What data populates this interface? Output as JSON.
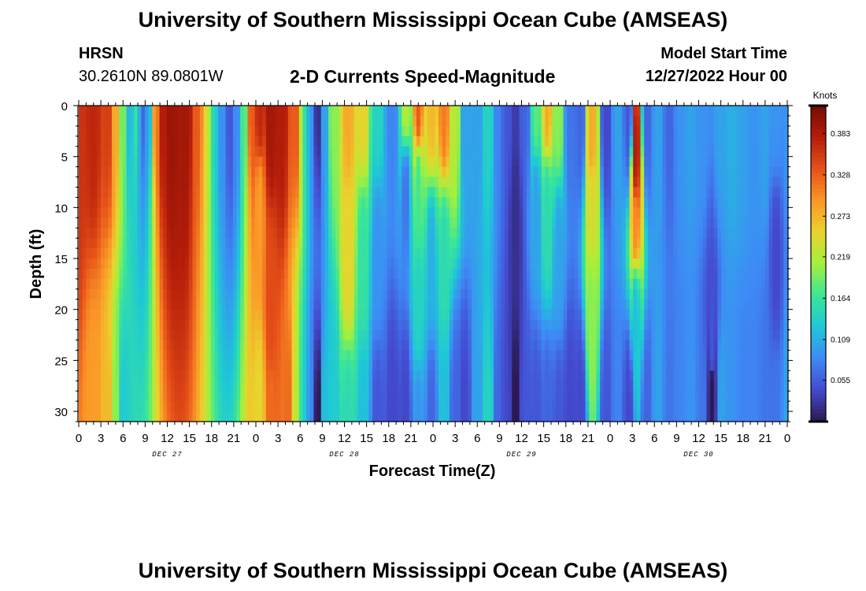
{
  "header": {
    "title": "University of Southern Mississippi Ocean Cube (AMSEAS)",
    "station": "HRSN",
    "coordinates": "30.2610N  89.0801W",
    "plot_title": "2-D Currents Speed-Magnitude",
    "model_start_label": "Model Start Time",
    "model_start_value": "12/27/2022 Hour 00"
  },
  "footer": {
    "title": "University of Southern Mississippi Ocean Cube (AMSEAS)"
  },
  "chart_data": {
    "type": "heatmap",
    "title": "2-D Currents Speed-Magnitude",
    "xlabel": "Forecast Time(Z)",
    "ylabel": "Depth (ft)",
    "x_range_hours": [
      0,
      96
    ],
    "ylim": [
      0,
      31
    ],
    "y_ticks": [
      "0",
      "5",
      "10",
      "15",
      "20",
      "25",
      "30"
    ],
    "x_tick_labels": [
      "0",
      "3",
      "6",
      "9",
      "12",
      "15",
      "18",
      "21",
      "0",
      "3",
      "6",
      "9",
      "12",
      "15",
      "18",
      "21",
      "0",
      "3",
      "6",
      "9",
      "12",
      "15",
      "18",
      "21",
      "0",
      "3",
      "6",
      "9",
      "12",
      "15",
      "18",
      "21",
      "0"
    ],
    "day_labels": [
      {
        "label": "DEC 27",
        "hour": 12
      },
      {
        "label": "DEC 28",
        "hour": 36
      },
      {
        "label": "DEC 29",
        "hour": 60
      },
      {
        "label": "DEC 30",
        "hour": 84
      }
    ],
    "colorbar": {
      "title": "Knots",
      "ticks": [
        "0.383",
        "0.328",
        "0.273",
        "0.219",
        "0.164",
        "0.109",
        "0.055"
      ],
      "range": [
        0.0,
        0.42
      ],
      "tick_values": [
        0.383,
        0.328,
        0.273,
        0.219,
        0.164,
        0.109,
        0.055
      ]
    },
    "features": [
      {
        "h": 0,
        "d": 0,
        "v": 0.36
      },
      {
        "h": 2,
        "d": 0,
        "v": 0.37
      },
      {
        "h": 2,
        "d": 31,
        "v": 0.29
      },
      {
        "h": 4,
        "d": 0,
        "v": 0.35
      },
      {
        "h": 4,
        "d": 31,
        "v": 0.27
      },
      {
        "h": 5,
        "d": 0,
        "v": 0.28
      },
      {
        "h": 5,
        "d": 31,
        "v": 0.2
      },
      {
        "h": 6,
        "d": 0,
        "v": 0.19
      },
      {
        "h": 6,
        "d": 31,
        "v": 0.13
      },
      {
        "h": 7,
        "d": 0,
        "v": 0.11
      },
      {
        "h": 7.5,
        "d": 0,
        "v": 0.16
      },
      {
        "h": 8.3,
        "d": 0,
        "v": 0.11
      },
      {
        "h": 8.8,
        "d": 0,
        "v": 0.06
      },
      {
        "h": 9.6,
        "d": 0,
        "v": 0.12
      },
      {
        "h": 10.3,
        "d": 0,
        "v": 0.29
      },
      {
        "h": 11.2,
        "d": 0,
        "v": 0.38
      },
      {
        "h": 12.5,
        "d": 0,
        "v": 0.395
      },
      {
        "h": 14.5,
        "d": 0,
        "v": 0.39
      },
      {
        "h": 16.2,
        "d": 0,
        "v": 0.33
      },
      {
        "h": 17.2,
        "d": 0,
        "v": 0.25
      },
      {
        "h": 18.2,
        "d": 0,
        "v": 0.15
      },
      {
        "h": 19.2,
        "d": 0,
        "v": 0.09
      },
      {
        "h": 20.6,
        "d": 0,
        "v": 0.05
      },
      {
        "h": 21.5,
        "d": 0,
        "v": 0.09
      },
      {
        "h": 22.5,
        "d": 0,
        "v": 0.18
      },
      {
        "h": 23.4,
        "d": 0,
        "v": 0.33
      },
      {
        "h": 24.5,
        "d": 0,
        "v": 0.37
      },
      {
        "h": 24.5,
        "d": 10,
        "v": 0.29
      },
      {
        "h": 24.5,
        "d": 31,
        "v": 0.25
      },
      {
        "h": 26,
        "d": 0,
        "v": 0.39
      },
      {
        "h": 26,
        "d": 20,
        "v": 0.34
      },
      {
        "h": 26,
        "d": 31,
        "v": 0.32
      },
      {
        "h": 27.5,
        "d": 0,
        "v": 0.38
      },
      {
        "h": 28.5,
        "d": 31,
        "v": 0.32
      },
      {
        "h": 29.5,
        "d": 0,
        "v": 0.33
      },
      {
        "h": 29.5,
        "d": 31,
        "v": 0.22
      },
      {
        "h": 30.6,
        "d": 0,
        "v": 0.16
      },
      {
        "h": 30.6,
        "d": 31,
        "v": 0.13
      },
      {
        "h": 31.5,
        "d": 0,
        "v": 0.09
      },
      {
        "h": 31.5,
        "d": 31,
        "v": 0.08
      },
      {
        "h": 32.4,
        "d": 0,
        "v": 0.02
      },
      {
        "h": 32.4,
        "d": 31,
        "v": 0.0
      },
      {
        "h": 33.3,
        "d": 0,
        "v": 0.1
      },
      {
        "h": 33.3,
        "d": 31,
        "v": 0.12
      },
      {
        "h": 34.5,
        "d": 0,
        "v": 0.2
      },
      {
        "h": 34.5,
        "d": 31,
        "v": 0.13
      },
      {
        "h": 36.5,
        "d": 0,
        "v": 0.28
      },
      {
        "h": 36.5,
        "d": 15,
        "v": 0.25
      },
      {
        "h": 36.5,
        "d": 31,
        "v": 0.15
      },
      {
        "h": 38.5,
        "d": 0,
        "v": 0.25
      },
      {
        "h": 38.5,
        "d": 15,
        "v": 0.16
      },
      {
        "h": 38.5,
        "d": 31,
        "v": 0.12
      },
      {
        "h": 40.5,
        "d": 0,
        "v": 0.14
      },
      {
        "h": 40.5,
        "d": 15,
        "v": 0.09
      },
      {
        "h": 40.5,
        "d": 31,
        "v": 0.05
      },
      {
        "h": 42.5,
        "d": 0,
        "v": 0.08
      },
      {
        "h": 42.5,
        "d": 31,
        "v": 0.04
      },
      {
        "h": 44.3,
        "d": 0,
        "v": 0.22
      },
      {
        "h": 44.3,
        "d": 8,
        "v": 0.07
      },
      {
        "h": 44.3,
        "d": 31,
        "v": 0.04
      },
      {
        "h": 46,
        "d": 0,
        "v": 0.33
      },
      {
        "h": 46,
        "d": 8,
        "v": 0.17
      },
      {
        "h": 46,
        "d": 20,
        "v": 0.14
      },
      {
        "h": 46,
        "d": 31,
        "v": 0.09
      },
      {
        "h": 47.8,
        "d": 0,
        "v": 0.27
      },
      {
        "h": 47.8,
        "d": 15,
        "v": 0.11
      },
      {
        "h": 47.8,
        "d": 31,
        "v": 0.06
      },
      {
        "h": 49.5,
        "d": 0,
        "v": 0.31
      },
      {
        "h": 49.5,
        "d": 15,
        "v": 0.15
      },
      {
        "h": 49.5,
        "d": 31,
        "v": 0.12
      },
      {
        "h": 51,
        "d": 0,
        "v": 0.22
      },
      {
        "h": 51,
        "d": 31,
        "v": 0.06
      },
      {
        "h": 52.3,
        "d": 0,
        "v": 0.1
      },
      {
        "h": 52.3,
        "d": 31,
        "v": 0.04
      },
      {
        "h": 54,
        "d": 0,
        "v": 0.1
      },
      {
        "h": 54,
        "d": 31,
        "v": 0.1
      },
      {
        "h": 55.5,
        "d": 0,
        "v": 0.14
      },
      {
        "h": 55.5,
        "d": 31,
        "v": 0.14
      },
      {
        "h": 56.8,
        "d": 0,
        "v": 0.08
      },
      {
        "h": 56.8,
        "d": 31,
        "v": 0.06
      },
      {
        "h": 58,
        "d": 0,
        "v": 0.05
      },
      {
        "h": 58,
        "d": 31,
        "v": 0.04
      },
      {
        "h": 59.2,
        "d": 0,
        "v": 0.03
      },
      {
        "h": 59.2,
        "d": 10,
        "v": 0.02
      },
      {
        "h": 59.2,
        "d": 31,
        "v": 0.0
      },
      {
        "h": 60.4,
        "d": 0,
        "v": 0.06
      },
      {
        "h": 60.4,
        "d": 31,
        "v": 0.05
      },
      {
        "h": 62,
        "d": 0,
        "v": 0.18
      },
      {
        "h": 62,
        "d": 10,
        "v": 0.1
      },
      {
        "h": 62,
        "d": 31,
        "v": 0.05
      },
      {
        "h": 63.5,
        "d": 0,
        "v": 0.28
      },
      {
        "h": 63.5,
        "d": 10,
        "v": 0.15
      },
      {
        "h": 63.5,
        "d": 31,
        "v": 0.06
      },
      {
        "h": 65,
        "d": 0,
        "v": 0.2
      },
      {
        "h": 65,
        "d": 15,
        "v": 0.1
      },
      {
        "h": 65,
        "d": 31,
        "v": 0.05
      },
      {
        "h": 66.5,
        "d": 0,
        "v": 0.07
      },
      {
        "h": 66.5,
        "d": 31,
        "v": 0.04
      },
      {
        "h": 68,
        "d": 0,
        "v": 0.06
      },
      {
        "h": 68,
        "d": 31,
        "v": 0.04
      },
      {
        "h": 69.5,
        "d": 3,
        "v": 0.28
      },
      {
        "h": 69.5,
        "d": 10,
        "v": 0.24
      },
      {
        "h": 69.5,
        "d": 20,
        "v": 0.2
      },
      {
        "h": 71.5,
        "d": 0,
        "v": 0.04
      },
      {
        "h": 71.5,
        "d": 31,
        "v": 0.05
      },
      {
        "h": 73,
        "d": 0,
        "v": 0.1
      },
      {
        "h": 73,
        "d": 31,
        "v": 0.08
      },
      {
        "h": 74.5,
        "d": 0,
        "v": 0.05
      },
      {
        "h": 74.5,
        "d": 31,
        "v": 0.04
      },
      {
        "h": 75.5,
        "d": 5,
        "v": 0.38
      },
      {
        "h": 75.5,
        "d": 12,
        "v": 0.3
      },
      {
        "h": 75.5,
        "d": 20,
        "v": 0.12
      },
      {
        "h": 77,
        "d": 0,
        "v": 0.06
      },
      {
        "h": 77,
        "d": 31,
        "v": 0.06
      },
      {
        "h": 78.5,
        "d": 0,
        "v": 0.1
      },
      {
        "h": 78.5,
        "d": 31,
        "v": 0.1
      },
      {
        "h": 80,
        "d": 0,
        "v": 0.06
      },
      {
        "h": 80,
        "d": 31,
        "v": 0.07
      },
      {
        "h": 81.5,
        "d": 0,
        "v": 0.09
      },
      {
        "h": 81.5,
        "d": 31,
        "v": 0.08
      },
      {
        "h": 83,
        "d": 0,
        "v": 0.1
      },
      {
        "h": 83,
        "d": 31,
        "v": 0.09
      },
      {
        "h": 84.5,
        "d": 0,
        "v": 0.09
      },
      {
        "h": 84.5,
        "d": 31,
        "v": 0.07
      },
      {
        "h": 85.8,
        "d": 28,
        "v": 0.0
      },
      {
        "h": 85.8,
        "d": 24,
        "v": 0.05
      },
      {
        "h": 87,
        "d": 0,
        "v": 0.1
      },
      {
        "h": 87,
        "d": 31,
        "v": 0.1
      },
      {
        "h": 88.5,
        "d": 0,
        "v": 0.11
      },
      {
        "h": 88.5,
        "d": 31,
        "v": 0.09
      },
      {
        "h": 90,
        "d": 0,
        "v": 0.1
      },
      {
        "h": 90,
        "d": 31,
        "v": 0.08
      },
      {
        "h": 91.5,
        "d": 0,
        "v": 0.09
      },
      {
        "h": 91.5,
        "d": 31,
        "v": 0.08
      },
      {
        "h": 93,
        "d": 0,
        "v": 0.1
      },
      {
        "h": 93,
        "d": 31,
        "v": 0.07
      },
      {
        "h": 94.5,
        "d": 0,
        "v": 0.09
      },
      {
        "h": 94.5,
        "d": 15,
        "v": 0.04
      },
      {
        "h": 94.5,
        "d": 31,
        "v": 0.07
      },
      {
        "h": 96,
        "d": 0,
        "v": 0.09
      },
      {
        "h": 96,
        "d": 31,
        "v": 0.1
      }
    ]
  }
}
